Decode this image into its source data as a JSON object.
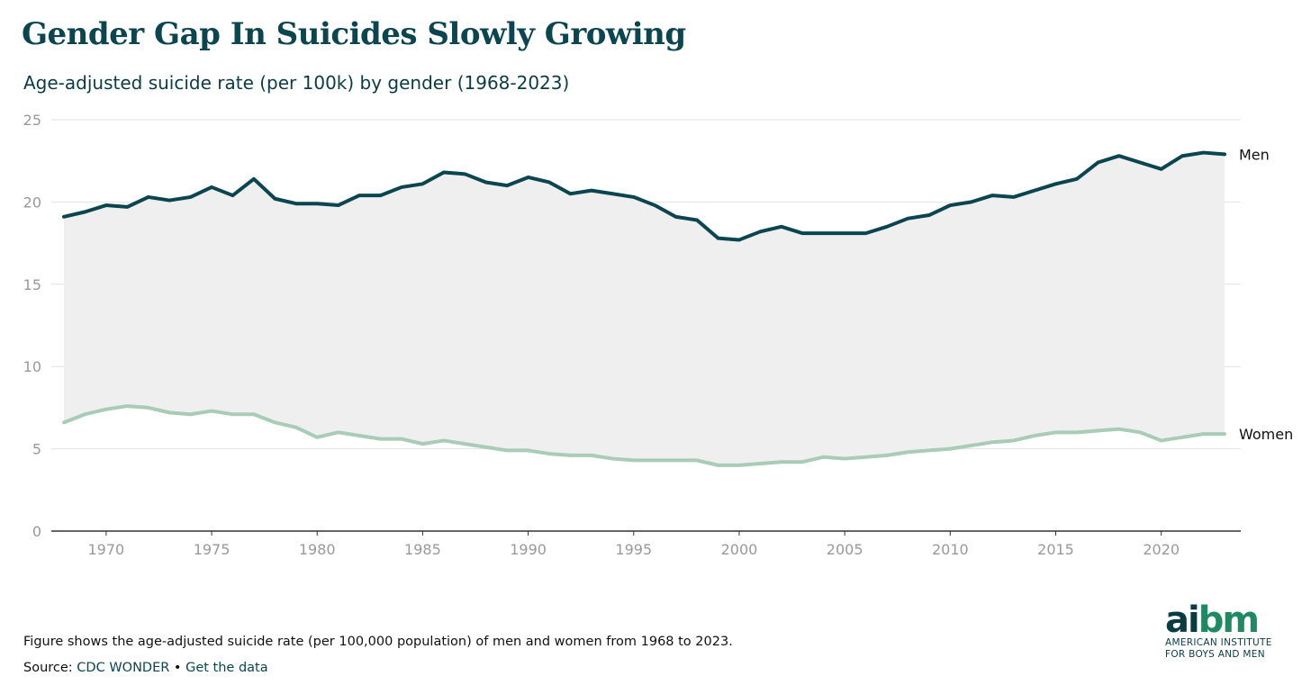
{
  "title": "Gender Gap In Suicides Slowly Growing",
  "subtitle": "Age-adjusted suicide rate (per 100k) by gender (1968-2023)",
  "note": "Figure shows the age-adjusted suicide rate (per 100,000 population) of men and women from 1968 to 2023.",
  "source": {
    "prefix": "Source: ",
    "link1": "CDC WONDER",
    "sep": " • ",
    "link2": "Get the data"
  },
  "logo": {
    "word_a": "ai",
    "word_b": "bm",
    "line1": "AMERICAN INSTITUTE",
    "line2": "FOR BOYS AND MEN"
  },
  "colors": {
    "men": "#0b4550",
    "women": "#a9ccb6",
    "fill": "#efefef"
  },
  "chart_data": {
    "type": "line",
    "title": "Gender Gap In Suicides Slowly Growing",
    "xlabel": "",
    "ylabel": "",
    "ylim": [
      0,
      25
    ],
    "xlim": [
      1968,
      2023
    ],
    "yticks": [
      0,
      5,
      10,
      15,
      20,
      25
    ],
    "xticks": [
      1970,
      1975,
      1980,
      1985,
      1990,
      1995,
      2000,
      2005,
      2010,
      2015,
      2020
    ],
    "grid": true,
    "x": [
      1968,
      1969,
      1970,
      1971,
      1972,
      1973,
      1974,
      1975,
      1976,
      1977,
      1978,
      1979,
      1980,
      1981,
      1982,
      1983,
      1984,
      1985,
      1986,
      1987,
      1988,
      1989,
      1990,
      1991,
      1992,
      1993,
      1994,
      1995,
      1996,
      1997,
      1998,
      1999,
      2000,
      2001,
      2002,
      2003,
      2004,
      2005,
      2006,
      2007,
      2008,
      2009,
      2010,
      2011,
      2012,
      2013,
      2014,
      2015,
      2016,
      2017,
      2018,
      2019,
      2020,
      2021,
      2022,
      2023
    ],
    "series": [
      {
        "name": "Men",
        "values": [
          19.1,
          19.4,
          19.8,
          19.7,
          20.3,
          20.1,
          20.3,
          20.9,
          20.4,
          21.4,
          20.2,
          19.9,
          19.9,
          19.8,
          20.4,
          20.4,
          20.9,
          21.1,
          21.8,
          21.7,
          21.2,
          21.0,
          21.5,
          21.2,
          20.5,
          20.7,
          20.5,
          20.3,
          19.8,
          19.1,
          18.9,
          17.8,
          17.7,
          18.2,
          18.5,
          18.1,
          18.1,
          18.1,
          18.1,
          18.5,
          19.0,
          19.2,
          19.8,
          20.0,
          20.4,
          20.3,
          20.7,
          21.1,
          21.4,
          22.4,
          22.8,
          22.4,
          22.0,
          22.8,
          23.0,
          22.9
        ]
      },
      {
        "name": "Women",
        "values": [
          6.6,
          7.1,
          7.4,
          7.6,
          7.5,
          7.2,
          7.1,
          7.3,
          7.1,
          7.1,
          6.6,
          6.3,
          5.7,
          6.0,
          5.8,
          5.6,
          5.6,
          5.3,
          5.5,
          5.3,
          5.1,
          4.9,
          4.9,
          4.7,
          4.6,
          4.6,
          4.4,
          4.3,
          4.3,
          4.3,
          4.3,
          4.0,
          4.0,
          4.1,
          4.2,
          4.2,
          4.5,
          4.4,
          4.5,
          4.6,
          4.8,
          4.9,
          5.0,
          5.2,
          5.4,
          5.5,
          5.8,
          6.0,
          6.0,
          6.1,
          6.2,
          6.0,
          5.5,
          5.7,
          5.9,
          5.9
        ]
      }
    ],
    "legend": "inline-right-labels"
  }
}
